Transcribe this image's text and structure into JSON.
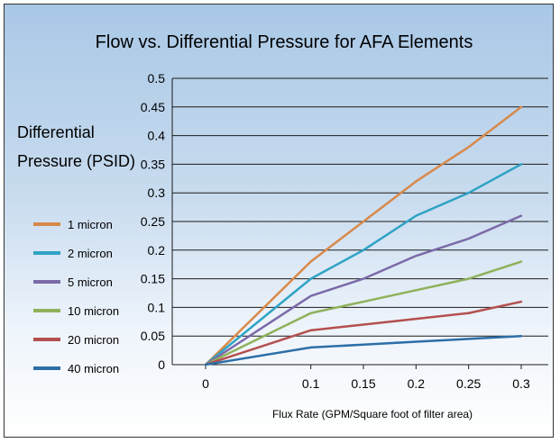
{
  "chart_data": {
    "type": "line",
    "title": "Flow vs. Differential Pressure for AFA Elements",
    "ylabel_lines": [
      "Differential",
      "Pressure (PSID)"
    ],
    "xlabel": "Flux Rate (GPM/Square foot of filter area)",
    "x": [
      0,
      0.1,
      0.15,
      0.2,
      0.25,
      0.3
    ],
    "x_tick_labels": [
      "0",
      "0.1",
      "0.15",
      "0.2",
      "0.25",
      "0.3"
    ],
    "y_ticks": [
      0,
      0.05,
      0.1,
      0.15,
      0.2,
      0.25,
      0.3,
      0.35,
      0.4,
      0.45,
      0.5
    ],
    "y_tick_labels": [
      "0",
      "0.05",
      "0.1",
      "0.15",
      "0.2",
      "0.25",
      "0.3",
      "0.35",
      "0.4",
      "0.45",
      "0.5"
    ],
    "ylim": [
      0,
      0.5
    ],
    "grid": "horizontal",
    "legend_position": "left",
    "series": [
      {
        "name": "1 micron",
        "color": "#d8894a",
        "values": [
          0,
          0.18,
          0.25,
          0.32,
          0.38,
          0.45
        ]
      },
      {
        "name": "2 micron",
        "color": "#2fa3c4",
        "values": [
          0,
          0.15,
          0.2,
          0.26,
          0.3,
          0.35
        ]
      },
      {
        "name": "5 micron",
        "color": "#7b6aa8",
        "values": [
          0,
          0.12,
          0.15,
          0.19,
          0.22,
          0.26
        ]
      },
      {
        "name": "10 micron",
        "color": "#8fb15a",
        "values": [
          0,
          0.09,
          0.11,
          0.13,
          0.15,
          0.18
        ]
      },
      {
        "name": "20 micron",
        "color": "#b4504e",
        "values": [
          0,
          0.06,
          0.07,
          0.08,
          0.09,
          0.11
        ]
      },
      {
        "name": "40 micron",
        "color": "#2c6fa8",
        "values": [
          0,
          0.03,
          0.035,
          0.04,
          0.045,
          0.05
        ]
      }
    ]
  }
}
